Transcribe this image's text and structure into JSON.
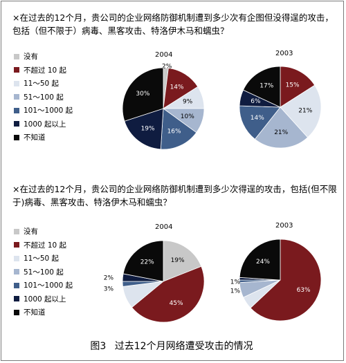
{
  "questions": {
    "q1": "×在过去的12个月，贵公司的企业网络防御机制遭到多少次有企图但没得逞的攻击，包括（但不限于）病毒、黑客攻击、特洛伊木马和蠕虫？",
    "q2": "×在过去的12个月，贵公司的企业网络防御机制遭到多少次得逞的攻击，包括(但不限于)病毒、黑客攻击、特洛伊木马和蠕虫？"
  },
  "legend": [
    "没有",
    "不超过 10 起",
    "11～50 起",
    "51～100 起",
    "101～1000 起",
    "1000 起以上",
    "不知道"
  ],
  "colors": [
    "#c8c8c8",
    "#7a1a1e",
    "#dde4ee",
    "#a6b6cf",
    "#3f5e8a",
    "#0f1c40",
    "#0a0a0a"
  ],
  "caption": {
    "figure": "图3",
    "title": "过去12个月网络遭受攻击的情况"
  },
  "chart_data": [
    {
      "type": "pie",
      "group": 1,
      "title": "2004",
      "categories": [
        "没有",
        "不超过 10 起",
        "11～50 起",
        "51～100 起",
        "101～1000 起",
        "1000 起以上",
        "不知道"
      ],
      "values": [
        2,
        14,
        9,
        10,
        16,
        19,
        30
      ],
      "labels": [
        "2%",
        "14%",
        "9%",
        "10%",
        "16%",
        "19%",
        "30%"
      ]
    },
    {
      "type": "pie",
      "group": 1,
      "title": "2003",
      "categories": [
        "没有",
        "不超过 10 起",
        "11～50 起",
        "51～100 起",
        "101～1000 起",
        "1000 起以上",
        "不知道"
      ],
      "values": [
        0,
        15,
        21,
        21,
        14,
        6,
        17
      ],
      "labels": [
        "",
        "15%",
        "21%",
        "21%",
        "14%",
        "6%",
        "17%"
      ]
    },
    {
      "type": "pie",
      "group": 2,
      "title": "2004",
      "categories": [
        "没有",
        "不超过 10 起",
        "11～50 起",
        "51～100 起",
        "101～1000 起",
        "1000 起以上",
        "不知道"
      ],
      "values": [
        19,
        45,
        9,
        0,
        2,
        3,
        22
      ],
      "labels": [
        "19%",
        "45%",
        "",
        "",
        "2%",
        "3%",
        "22%"
      ]
    },
    {
      "type": "pie",
      "group": 2,
      "title": "2003",
      "categories": [
        "没有",
        "不超过 10 起",
        "11～50 起",
        "51～100 起",
        "101～1000 起",
        "1000 起以上",
        "不知道"
      ],
      "values": [
        0,
        63,
        5,
        6,
        1,
        1,
        24
      ],
      "labels": [
        "",
        "63%",
        "",
        "",
        "1%",
        "1%",
        "24%"
      ]
    }
  ]
}
